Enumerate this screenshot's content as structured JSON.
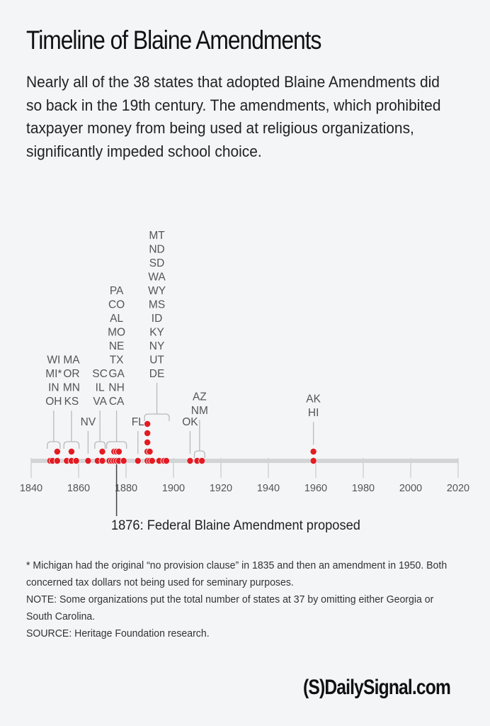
{
  "header": {
    "title": "Timeline of Blaine Amendments",
    "subtitle": "Nearly all of the 38 states that adopted Blaine Amendments did so back in the 19th century. The amendments, which prohibited taxpayer money from being used at religious organizations, significantly impeded school choice."
  },
  "chart_data": {
    "type": "scatter",
    "title": "Timeline of Blaine Amendments",
    "xlabel": "",
    "ylabel": "",
    "xlim": [
      1840,
      2020
    ],
    "x_ticks": [
      1840,
      1860,
      1880,
      1900,
      1920,
      1940,
      1960,
      1980,
      2000,
      2020
    ],
    "grid": false,
    "point_color": "#e31b23",
    "groups": [
      {
        "states": [
          "WI",
          "MI*",
          "IN",
          "OH"
        ],
        "years": [
          1848,
          1849,
          1851,
          1851
        ],
        "bracket": true
      },
      {
        "states": [
          "MA",
          "OR",
          "MN",
          "KS"
        ],
        "years": [
          1855,
          1857,
          1857,
          1859
        ],
        "bracket": true
      },
      {
        "states": [
          "NV"
        ],
        "years": [
          1864
        ],
        "bracket": false
      },
      {
        "states": [
          "SC",
          "IL",
          "VA"
        ],
        "years": [
          1868,
          1870,
          1870
        ],
        "bracket": true
      },
      {
        "states": [
          "PA",
          "CO",
          "AL",
          "MO",
          "NE",
          "TX",
          "GA",
          "NH",
          "CA"
        ],
        "years": [
          1873,
          1874,
          1875,
          1875,
          1876,
          1876,
          1877,
          1877,
          1879
        ],
        "bracket": true
      },
      {
        "states": [
          "FL"
        ],
        "years": [
          1885
        ],
        "bracket": false
      },
      {
        "states": [
          "MT",
          "ND",
          "SD",
          "WA",
          "WY",
          "MS",
          "ID",
          "KY",
          "NY",
          "UT",
          "DE"
        ],
        "years": [
          1889,
          1889,
          1889,
          1889,
          1889,
          1890,
          1890,
          1891,
          1894,
          1896,
          1897
        ],
        "bracket": true
      },
      {
        "states": [
          "OK"
        ],
        "years": [
          1907
        ],
        "bracket": false
      },
      {
        "states": [
          "AZ",
          "NM"
        ],
        "years": [
          1910,
          1912
        ],
        "bracket": true
      },
      {
        "states": [
          "AK",
          "HI"
        ],
        "years": [
          1959,
          1959
        ],
        "bracket": false
      }
    ],
    "annotations": [
      {
        "year": 1876,
        "text": "1876: Federal Blaine Amendment proposed"
      }
    ]
  },
  "notes": {
    "footnote": "* Michigan had the original “no provision clause” in 1835 and then an amendment in 1950. Both concerned tax dollars not being used for seminary purposes.",
    "note": "NOTE: Some organizations put the total number of states at 37 by omitting either Georgia or South Carolina.",
    "source": "SOURCE: Heritage Foundation research."
  },
  "logo": {
    "text": "(S)DailySignal.com"
  }
}
